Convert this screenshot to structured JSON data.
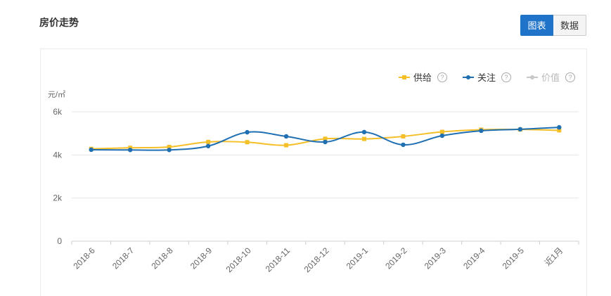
{
  "header": {
    "title": "房价走势"
  },
  "toggle": {
    "chart_label": "图表",
    "data_label": "数据"
  },
  "legend": [
    {
      "name": "供给",
      "color": "#f5bf27",
      "marker": "square",
      "enabled": true
    },
    {
      "name": "关注",
      "color": "#1f6fb2",
      "marker": "circle",
      "enabled": true
    },
    {
      "name": "价值",
      "color": "#c8c8c8",
      "marker": "circle",
      "enabled": false
    }
  ],
  "help_icon": "?",
  "chart_data": {
    "type": "line",
    "unit_label": "元/㎡",
    "categories": [
      "2018-6",
      "2018-7",
      "2018-8",
      "2018-9",
      "2018-10",
      "2018-11",
      "2018-12",
      "2019-1",
      "2019-2",
      "2019-3",
      "2019-4",
      "2019-5",
      "近1月"
    ],
    "ylim": [
      0,
      6000
    ],
    "yticks": [
      0,
      2000,
      4000,
      6000
    ],
    "ytick_labels": [
      "0",
      "2k",
      "4k",
      "6k"
    ],
    "grid": true,
    "series": [
      {
        "name": "供给",
        "color": "#f5bf27",
        "marker": "square",
        "values": [
          4280,
          4330,
          4370,
          4600,
          4590,
          4450,
          4750,
          4740,
          4860,
          5070,
          5170,
          5180,
          5140
        ]
      },
      {
        "name": "关注",
        "color": "#1f6fb2",
        "marker": "circle",
        "values": [
          4240,
          4230,
          4230,
          4410,
          5050,
          4860,
          4600,
          5060,
          4470,
          4890,
          5120,
          5190,
          5280
        ]
      }
    ]
  }
}
